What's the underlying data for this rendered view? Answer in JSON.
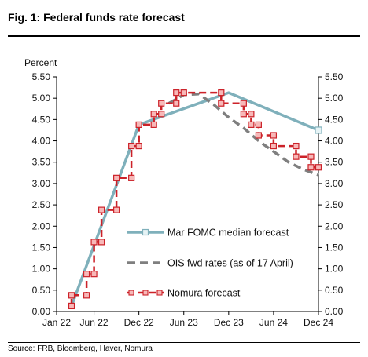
{
  "figure": {
    "title": "Fig. 1: Federal funds rate forecast",
    "source": "Source: FRB, Bloomberg, Haver, Nomura"
  },
  "chart_data": {
    "type": "line",
    "ylabel": "Percent",
    "ylim": [
      0.0,
      5.5
    ],
    "yticks": [
      "0.00",
      "0.50",
      "1.00",
      "1.50",
      "2.00",
      "2.50",
      "3.00",
      "3.50",
      "4.00",
      "4.50",
      "5.00",
      "5.50"
    ],
    "xticks": [
      "Jan 22",
      "Jun 22",
      "Dec 22",
      "Jun 23",
      "Dec 23",
      "Jun 24",
      "Dec 24"
    ],
    "grid": false,
    "legend_position": "lower-center",
    "colors": {
      "fomc": "#7fb0bb",
      "ois": "#7f7f7f",
      "nomura": "#cc2229",
      "nomura_marker_fill": "#f7b8b8"
    },
    "series": [
      {
        "name": "Mar FOMC median forecast",
        "style": "solid",
        "points": [
          [
            "Mar 22",
            0.13
          ],
          [
            "Dec 22",
            4.38
          ],
          [
            "Dec 23",
            5.13
          ],
          [
            "Dec 24",
            4.25
          ]
        ]
      },
      {
        "name": "OIS fwd rates (as of 17 April)",
        "style": "dashed",
        "points": [
          [
            "Apr 23",
            4.88
          ],
          [
            "Jun 23",
            5.08
          ],
          [
            "Aug 23",
            5.1
          ],
          [
            "Oct 23",
            4.85
          ],
          [
            "Dec 23",
            4.55
          ],
          [
            "Feb 24",
            4.3
          ],
          [
            "Apr 24",
            4.0
          ],
          [
            "Jun 24",
            3.75
          ],
          [
            "Aug 24",
            3.5
          ],
          [
            "Oct 24",
            3.33
          ],
          [
            "Dec 24",
            3.2
          ]
        ]
      },
      {
        "name": "Nomura forecast",
        "style": "dashed-step-markers",
        "points": [
          [
            "Mar 22",
            0.13
          ],
          [
            "Mar 22",
            0.38
          ],
          [
            "May 22",
            0.38
          ],
          [
            "May 22",
            0.88
          ],
          [
            "Jun 22",
            0.88
          ],
          [
            "Jun 22",
            1.63
          ],
          [
            "Jul 22",
            1.63
          ],
          [
            "Jul 22",
            2.38
          ],
          [
            "Sep 22",
            2.38
          ],
          [
            "Sep 22",
            3.13
          ],
          [
            "Nov 22",
            3.13
          ],
          [
            "Nov 22",
            3.88
          ],
          [
            "Dec 22",
            3.88
          ],
          [
            "Dec 22",
            4.38
          ],
          [
            "Feb 23",
            4.38
          ],
          [
            "Feb 23",
            4.63
          ],
          [
            "Mar 23",
            4.63
          ],
          [
            "Mar 23",
            4.88
          ],
          [
            "May 23",
            4.88
          ],
          [
            "May 23",
            5.13
          ],
          [
            "Jun 23",
            5.13
          ],
          [
            "Nov 23",
            5.13
          ],
          [
            "Nov 23",
            4.88
          ],
          [
            "Feb 24",
            4.88
          ],
          [
            "Feb 24",
            4.63
          ],
          [
            "Mar 24",
            4.63
          ],
          [
            "Mar 24",
            4.38
          ],
          [
            "Apr 24",
            4.38
          ],
          [
            "Apr 24",
            4.13
          ],
          [
            "Jun 24",
            4.13
          ],
          [
            "Jun 24",
            3.88
          ],
          [
            "Sep 24",
            3.88
          ],
          [
            "Sep 24",
            3.63
          ],
          [
            "Nov 24",
            3.63
          ],
          [
            "Nov 24",
            3.38
          ],
          [
            "Dec 24",
            3.38
          ]
        ]
      }
    ]
  }
}
